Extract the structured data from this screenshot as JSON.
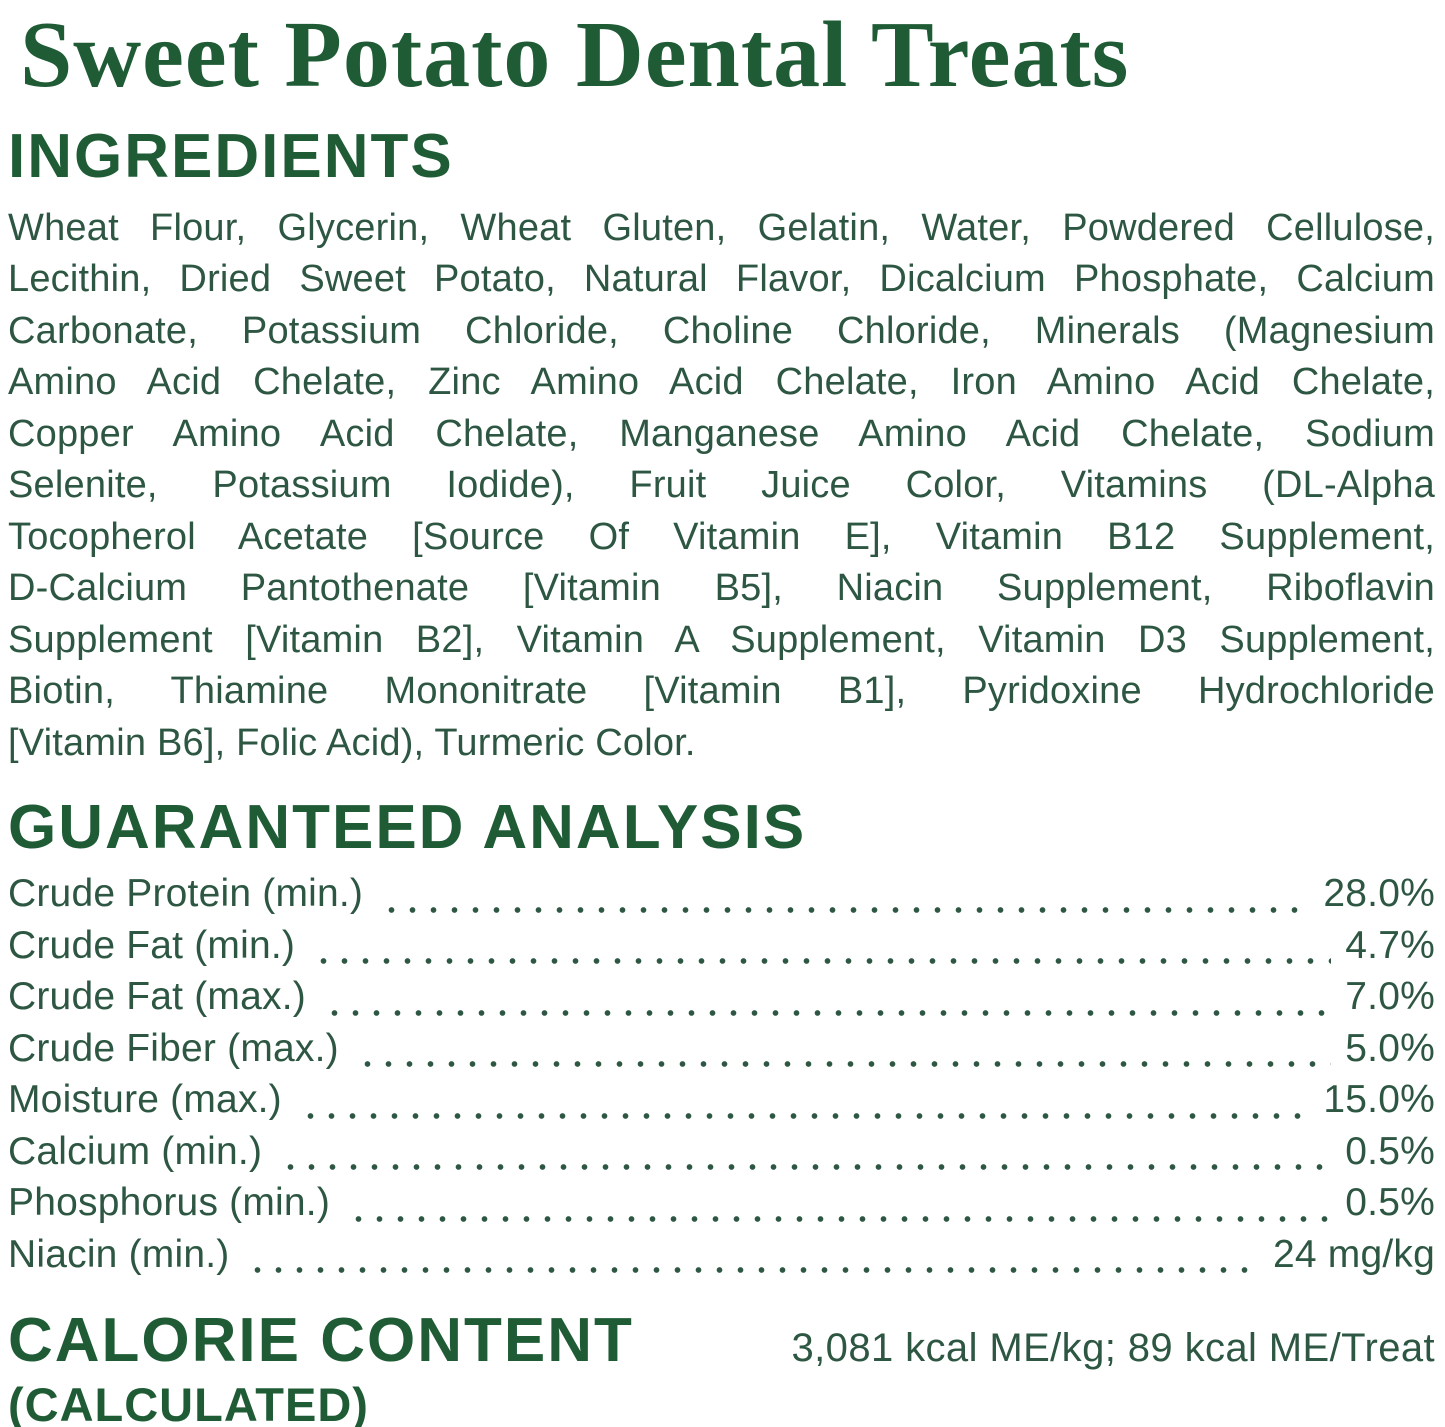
{
  "colors": {
    "heading_green": "#1f5c36",
    "body_green": "#2e5743",
    "background": "#ffffff"
  },
  "title": "Sweet Potato Dental Treats",
  "ingredients": {
    "heading": "INGREDIENTS",
    "lines": [
      "Wheat Flour, Glycerin, Wheat Gluten, Gelatin, Water, Powdered Cellulose,",
      "Lecithin, Dried Sweet Potato, Natural Flavor, Dicalcium Phosphate, Calcium",
      "Carbonate, Potassium Chloride, Choline Chloride, Minerals (Magnesium",
      "Amino Acid Chelate, Zinc Amino Acid Chelate, Iron Amino Acid Chelate,",
      "Copper Amino Acid Chelate, Manganese Amino Acid Chelate, Sodium",
      "Selenite, Potassium Iodide), Fruit Juice Color, Vitamins (DL-Alpha",
      "Tocopherol Acetate [Source Of Vitamin E], Vitamin B12 Supplement,",
      "D-Calcium Pantothenate [Vitamin B5], Niacin Supplement, Riboflavin",
      "Supplement [Vitamin B2], Vitamin A Supplement, Vitamin D3 Supplement,",
      "Biotin, Thiamine Mononitrate [Vitamin B1], Pyridoxine Hydrochloride",
      "[Vitamin B6], Folic Acid), Turmeric Color."
    ]
  },
  "analysis": {
    "heading": "GUARANTEED ANALYSIS",
    "rows": [
      {
        "label": "Crude Protein (min.)",
        "value": "28.0%"
      },
      {
        "label": "Crude Fat (min.)",
        "value": "4.7%"
      },
      {
        "label": "Crude Fat (max.)",
        "value": "7.0%"
      },
      {
        "label": "Crude Fiber (max.)",
        "value": "5.0%"
      },
      {
        "label": "Moisture (max.)",
        "value": "15.0%"
      },
      {
        "label": "Calcium (min.)",
        "value": "0.5%"
      },
      {
        "label": "Phosphorus (min.)",
        "value": "0.5%"
      },
      {
        "label": "Niacin (min.)",
        "value": "24 mg/kg"
      }
    ]
  },
  "calories": {
    "heading": "CALORIE CONTENT",
    "subheading": "(CALCULATED)",
    "value": "3,081 kcal ME/kg; 89 kcal ME/Treat"
  }
}
